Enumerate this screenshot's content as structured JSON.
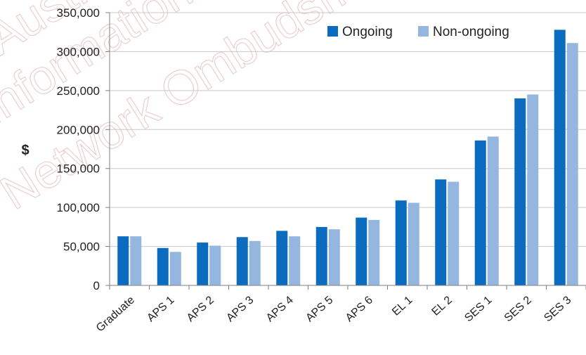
{
  "chart_data": {
    "type": "bar",
    "ylabel": "$",
    "xlabel": "",
    "ylim": [
      0,
      350000
    ],
    "yticks": [
      0,
      50000,
      100000,
      150000,
      200000,
      250000,
      300000,
      350000
    ],
    "ytick_labels": [
      "0",
      "50,000",
      "100,000",
      "150,000",
      "200,000",
      "250,000",
      "300,000",
      "350,000"
    ],
    "grid": true,
    "legend_position": "top-right",
    "categories": [
      "Graduate",
      "APS 1",
      "APS 2",
      "APS 3",
      "APS 4",
      "APS 5",
      "APS 6",
      "EL 1",
      "EL 2",
      "SES 1",
      "SES 2",
      "SES 3"
    ],
    "series": [
      {
        "name": "Ongoing",
        "color": "#0b6cbf",
        "values": [
          63000,
          48000,
          55000,
          62000,
          70000,
          75000,
          87000,
          109000,
          136000,
          186000,
          240000,
          328000
        ]
      },
      {
        "name": "Non-ongoing",
        "color": "#94b6df",
        "values": [
          63000,
          43000,
          51000,
          57000,
          63000,
          72000,
          84000,
          106000,
          133000,
          191000,
          245000,
          311000
        ]
      }
    ]
  },
  "watermark": {
    "lines": [
      "Australian",
      "Information",
      "Network Ombudsman"
    ]
  }
}
